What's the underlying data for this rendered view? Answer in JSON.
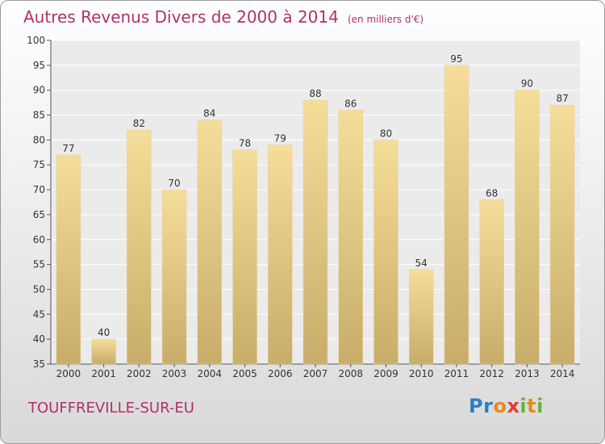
{
  "header": {
    "title": "Autres Revenus Divers de 2000 à 2014",
    "unit": "(en milliers d'€)"
  },
  "footer": {
    "city": "TOUFFREVILLE-SUR-EU",
    "logo": "Proxiti"
  },
  "colors": {
    "title": "#b0306a",
    "bar_top": "#f5dd9a",
    "bar_bottom": "#c8ad6a"
  },
  "chart_data": {
    "type": "bar",
    "title": "Autres Revenus Divers de 2000 à 2014",
    "subtitle": "(en milliers d'€)",
    "xlabel": "",
    "ylabel": "",
    "categories": [
      "2000",
      "2001",
      "2002",
      "2003",
      "2004",
      "2005",
      "2006",
      "2007",
      "2008",
      "2009",
      "2010",
      "2011",
      "2012",
      "2013",
      "2014"
    ],
    "values": [
      77,
      40,
      82,
      70,
      84,
      78,
      79,
      88,
      86,
      80,
      54,
      95,
      68,
      90,
      87
    ],
    "ylim": [
      35,
      100
    ],
    "yticks": [
      35,
      40,
      45,
      50,
      55,
      60,
      65,
      70,
      75,
      80,
      85,
      90,
      95,
      100
    ],
    "grid": true,
    "data_labels": true
  }
}
